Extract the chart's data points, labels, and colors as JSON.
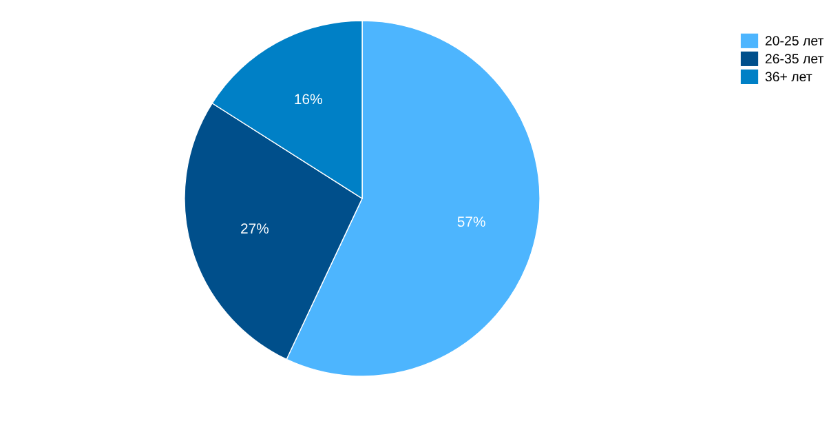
{
  "chart_data": {
    "type": "pie",
    "categories": [
      "20-25 лет",
      "26-35 лет",
      "36+ лет"
    ],
    "values": [
      57,
      27,
      16
    ],
    "colors": [
      "#4db5fe",
      "#004f8b",
      "#0080c6"
    ],
    "value_labels": [
      "57%",
      "27%",
      "16%"
    ],
    "legend": "top right"
  }
}
